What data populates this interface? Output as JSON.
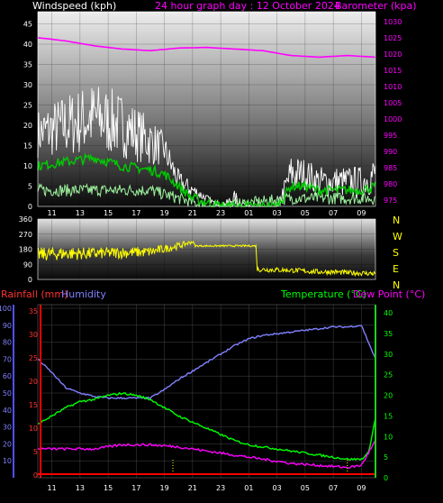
{
  "title": "24 hour graph day : 12 October 2024",
  "colors": {
    "wind": "#ffffff",
    "wind_avg": "#00cc00",
    "wind_low": "#9cf09c",
    "baro": "#ff00ff",
    "dir": "#ffff00",
    "rain": "#ff0000",
    "humidity": "#8080ff",
    "temp": "#00ff00",
    "dew": "#ff00ff"
  },
  "time_ticks": [
    "11",
    "13",
    "15",
    "17",
    "19",
    "21",
    "23",
    "01",
    "03",
    "05",
    "07",
    "09"
  ],
  "chart_data": [
    {
      "type": "line",
      "panel": "wind-baro",
      "left_axis_label": "Windspeed (kph)",
      "right_axis_label": "Barometer (kpa)",
      "left_ticks": [
        "0",
        "5",
        "10",
        "15",
        "20",
        "25",
        "30",
        "35",
        "40",
        "45"
      ],
      "right_ticks": [
        "975",
        "980",
        "985",
        "990",
        "995",
        "1000",
        "1005",
        "1010",
        "1015",
        "1020",
        "1025",
        "1030"
      ],
      "left_ylim": [
        0,
        48
      ],
      "right_ylim": [
        973,
        1033
      ],
      "x_range_hours": [
        0,
        24
      ],
      "series": [
        {
          "name": "Barometer",
          "axis": "right",
          "x": [
            0,
            2,
            4,
            6,
            8,
            10,
            12,
            14,
            16,
            18,
            20,
            22,
            24
          ],
          "values": [
            1025,
            1024,
            1022.5,
            1021.5,
            1021,
            1021.8,
            1022,
            1021.5,
            1021,
            1019.5,
            1019,
            1019.5,
            1019
          ]
        },
        {
          "name": "Wind gust",
          "axis": "left",
          "style": "noise",
          "x": [
            0,
            2,
            4,
            6,
            8,
            9,
            10,
            11,
            13,
            14,
            15,
            16,
            17,
            18,
            19,
            20,
            21,
            22,
            23,
            24
          ],
          "values": [
            18,
            20,
            22,
            20,
            16,
            14,
            6,
            4,
            0,
            2,
            0,
            0,
            0,
            8,
            8,
            6,
            6,
            6,
            6,
            8
          ],
          "spread": [
            6,
            8,
            9,
            8,
            6,
            4,
            3,
            2,
            0,
            2,
            0,
            0,
            0,
            5,
            4,
            4,
            4,
            4,
            4,
            5
          ]
        },
        {
          "name": "Wind average",
          "axis": "left",
          "x": [
            0,
            2,
            4,
            6,
            8,
            9,
            10,
            11,
            12,
            13,
            14,
            15,
            16,
            17,
            18,
            19,
            20,
            21,
            22,
            23,
            24
          ],
          "values": [
            10,
            11,
            12,
            10,
            9,
            8,
            5,
            2,
            1,
            0,
            0,
            0,
            0,
            0,
            5,
            5,
            4,
            4,
            4,
            4,
            5
          ]
        },
        {
          "name": "Wind low",
          "axis": "left",
          "x": [
            0,
            4,
            8,
            9,
            10,
            11,
            12,
            13,
            18,
            19,
            20,
            21,
            22,
            23,
            24
          ],
          "values": [
            4,
            4,
            4,
            3,
            2,
            1,
            0,
            0,
            2,
            2,
            2,
            2,
            2,
            2,
            2
          ]
        }
      ]
    },
    {
      "type": "line",
      "panel": "direction",
      "left_ticks": [
        "0",
        "90",
        "180",
        "270",
        "360"
      ],
      "ylim": [
        0,
        360
      ],
      "compass": [
        "N",
        "W",
        "S",
        "E",
        "N"
      ],
      "series": [
        {
          "name": "Direction",
          "style": "noise",
          "x": [
            0,
            2,
            4,
            6,
            8,
            10,
            11,
            11.2,
            15.5,
            15.6,
            18,
            20,
            21,
            22,
            24
          ],
          "values": [
            150,
            155,
            155,
            160,
            165,
            200,
            225,
            200,
            200,
            60,
            55,
            45,
            45,
            40,
            35
          ],
          "spread": [
            40,
            40,
            35,
            35,
            30,
            20,
            10,
            5,
            5,
            15,
            15,
            15,
            15,
            15,
            15
          ]
        }
      ]
    },
    {
      "type": "line",
      "panel": "rain-hum-temp",
      "left_axis_label": "Rainfall (mm)",
      "left_axis_label2": "Humidity",
      "right_axis_label": "Temperature (°C)",
      "right_axis_label2": "Dew Point (°C)",
      "humidity_ticks": [
        "10",
        "20",
        "30",
        "40",
        "50",
        "60",
        "70",
        "80",
        "90",
        "100"
      ],
      "rain_ticks": [
        "0",
        "5",
        "10",
        "15",
        "20",
        "25",
        "30",
        "35"
      ],
      "temp_ticks": [
        "0",
        "5",
        "10",
        "15",
        "20",
        "25",
        "30",
        "35",
        "40"
      ],
      "humidity_ylim": [
        0,
        100
      ],
      "temp_ylim": [
        0,
        42
      ],
      "series": [
        {
          "name": "Humidity",
          "axis": "humidity",
          "x": [
            0,
            1,
            2,
            3,
            4,
            5,
            6,
            7,
            8,
            9,
            10,
            11,
            12,
            13,
            14,
            15,
            16,
            17,
            18,
            19,
            20,
            21,
            22,
            23,
            24
          ],
          "values": [
            70,
            62,
            53,
            50,
            48,
            47,
            47,
            47,
            47,
            52,
            58,
            63,
            68,
            73,
            78,
            82,
            84,
            85,
            86,
            87,
            88,
            89,
            89,
            90,
            70
          ]
        },
        {
          "name": "Temperature",
          "axis": "temp",
          "x": [
            0,
            1,
            2,
            3,
            4,
            5,
            6,
            7,
            8,
            9,
            10,
            11,
            12,
            13,
            14,
            15,
            16,
            17,
            18,
            19,
            20,
            21,
            22,
            23,
            23.5,
            24
          ],
          "values": [
            13,
            15,
            17,
            18.5,
            19,
            20,
            20.5,
            20,
            19,
            17,
            15,
            13.5,
            12,
            10.5,
            9,
            8,
            7.5,
            7,
            6.5,
            6,
            5.5,
            5,
            4.5,
            4.5,
            6,
            14.5
          ]
        },
        {
          "name": "Dew Point",
          "axis": "temp",
          "x": [
            0,
            2,
            4,
            6,
            8,
            10,
            12,
            14,
            16,
            18,
            20,
            22,
            23,
            24
          ],
          "values": [
            7,
            7,
            7,
            8,
            8,
            7.5,
            6.5,
            5.5,
            4.5,
            3.5,
            3,
            2.5,
            3,
            9
          ]
        },
        {
          "name": "Rainfall",
          "axis": "rain",
          "x": [
            0,
            24
          ],
          "values": [
            0,
            0
          ]
        }
      ],
      "rain_markers_hours": [
        9.6,
        22.0
      ]
    }
  ]
}
